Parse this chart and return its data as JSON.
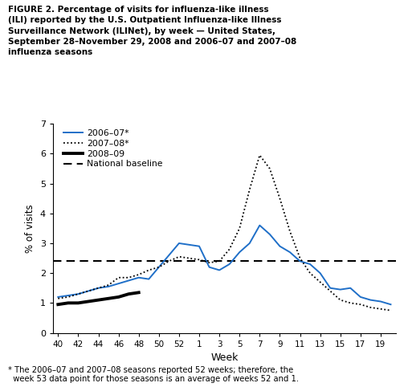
{
  "title": "FIGURE 2. Percentage of visits for influenza-like illness\n(ILI) reported by the U.S. Outpatient Influenza-like Illness\nSurveillance Network (ILINet), by week — United States,\nSeptember 28–November 29, 2008 and 2006–07 and 2007–08\ninfluenza seasons",
  "footnote": "* The 2006–07 and 2007–08 seasons reported 52 weeks; therefore, the\n  week 53 data point for those seasons is an average of weeks 52 and 1.",
  "xlabel": "Week",
  "ylabel": "% of visits",
  "ylim": [
    0,
    7
  ],
  "yticks": [
    0,
    1,
    2,
    3,
    4,
    5,
    6,
    7
  ],
  "national_baseline": 2.4,
  "x_tick_weeks": [
    40,
    42,
    44,
    46,
    48,
    50,
    52,
    1,
    3,
    5,
    7,
    9,
    11,
    13,
    15,
    17,
    19
  ],
  "x_tick_labels": [
    "40",
    "42",
    "44",
    "46",
    "48",
    "50",
    "52",
    "1",
    "3",
    "5",
    "7",
    "9",
    "11",
    "13",
    "15",
    "17",
    "19"
  ],
  "season_2006_07_x": [
    40,
    41,
    42,
    43,
    44,
    45,
    46,
    47,
    48,
    49,
    50,
    51,
    52,
    1,
    2,
    3,
    4,
    5,
    6,
    7,
    8,
    9,
    10,
    11,
    12,
    13,
    14,
    15,
    16,
    17,
    18,
    19,
    20
  ],
  "season_2006_07_y": [
    1.2,
    1.25,
    1.3,
    1.4,
    1.5,
    1.55,
    1.65,
    1.75,
    1.85,
    1.8,
    2.2,
    2.6,
    3.0,
    2.9,
    2.2,
    2.1,
    2.3,
    2.7,
    3.0,
    3.6,
    3.3,
    2.9,
    2.7,
    2.4,
    2.3,
    2.0,
    1.5,
    1.45,
    1.5,
    1.2,
    1.1,
    1.05,
    0.95
  ],
  "season_2007_08_x": [
    40,
    41,
    42,
    43,
    44,
    45,
    46,
    47,
    48,
    49,
    50,
    51,
    52,
    1,
    2,
    3,
    4,
    5,
    6,
    7,
    8,
    9,
    10,
    11,
    12,
    13,
    14,
    15,
    16,
    17,
    18,
    19,
    20
  ],
  "season_2007_08_y": [
    1.15,
    1.2,
    1.3,
    1.4,
    1.5,
    1.6,
    1.85,
    1.85,
    1.95,
    2.1,
    2.2,
    2.4,
    2.55,
    2.45,
    2.35,
    2.4,
    2.8,
    3.5,
    4.8,
    5.95,
    5.5,
    4.5,
    3.4,
    2.5,
    2.0,
    1.7,
    1.4,
    1.1,
    1.0,
    0.95,
    0.85,
    0.8,
    0.75
  ],
  "season_2008_09_x": [
    40,
    41,
    42,
    43,
    44,
    45,
    46,
    47,
    48
  ],
  "season_2008_09_y": [
    0.95,
    1.0,
    1.0,
    1.05,
    1.1,
    1.15,
    1.2,
    1.3,
    1.35
  ],
  "color_2006_07": "#1f6fc8",
  "color_2007_08": "#000000",
  "color_2008_09": "#000000",
  "color_baseline": "#000000",
  "legend_labels": [
    "2006–07*",
    "2007–08*",
    "2008–09",
    "National baseline"
  ]
}
